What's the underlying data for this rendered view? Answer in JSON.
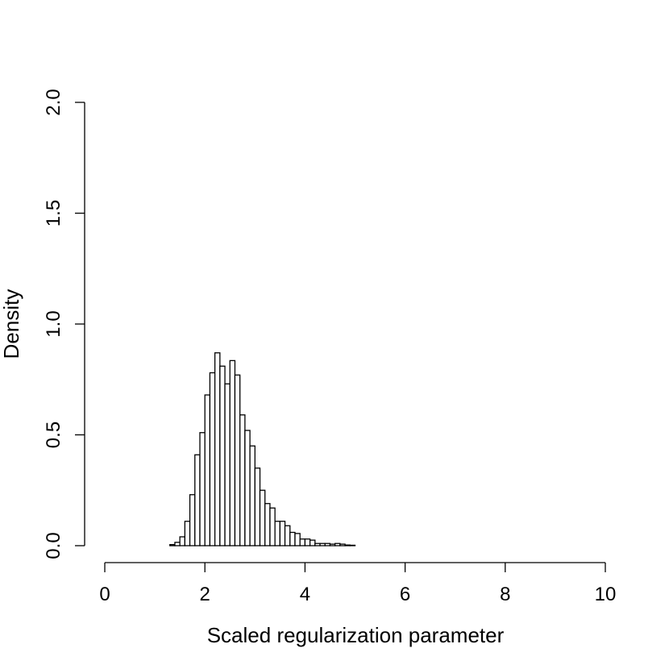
{
  "chart_data": {
    "type": "bar",
    "title": "",
    "xlabel": "Scaled regularization parameter",
    "ylabel": "Density",
    "xlim": [
      0,
      10
    ],
    "ylim": [
      0,
      2.0
    ],
    "x_ticks": [
      0,
      2,
      4,
      6,
      8,
      10
    ],
    "x_tick_labels": [
      "0",
      "2",
      "4",
      "6",
      "8",
      "10"
    ],
    "y_ticks": [
      0,
      0.5,
      1.0,
      1.5,
      2.0
    ],
    "y_tick_labels": [
      "0.0",
      "0.5",
      "1.0",
      "1.5",
      "2.0"
    ],
    "grid": false,
    "bin_width": 0.1,
    "bin_start": 0,
    "values": [
      0,
      0,
      0,
      0,
      0,
      0,
      0,
      0,
      0,
      0,
      0,
      0,
      0,
      0.005,
      0.015,
      0.04,
      0.11,
      0.23,
      0.41,
      0.51,
      0.68,
      0.78,
      0.87,
      0.81,
      0.73,
      0.835,
      0.77,
      0.59,
      0.52,
      0.45,
      0.35,
      0.25,
      0.19,
      0.17,
      0.11,
      0.11,
      0.09,
      0.06,
      0.055,
      0.03,
      0.03,
      0.025,
      0.01,
      0.01,
      0.01,
      0.007,
      0.01,
      0.007,
      0.003,
      0.002,
      0,
      0,
      0,
      0,
      0,
      0,
      0,
      0,
      0,
      0,
      0,
      0,
      0,
      0,
      0,
      0,
      0,
      0,
      0,
      0,
      0,
      0,
      0,
      0,
      0,
      0,
      0,
      0,
      0,
      0,
      0,
      0,
      0,
      0,
      0,
      0,
      0,
      0,
      0,
      0,
      0,
      0,
      0,
      0,
      0,
      0,
      0,
      0,
      0,
      0
    ]
  }
}
